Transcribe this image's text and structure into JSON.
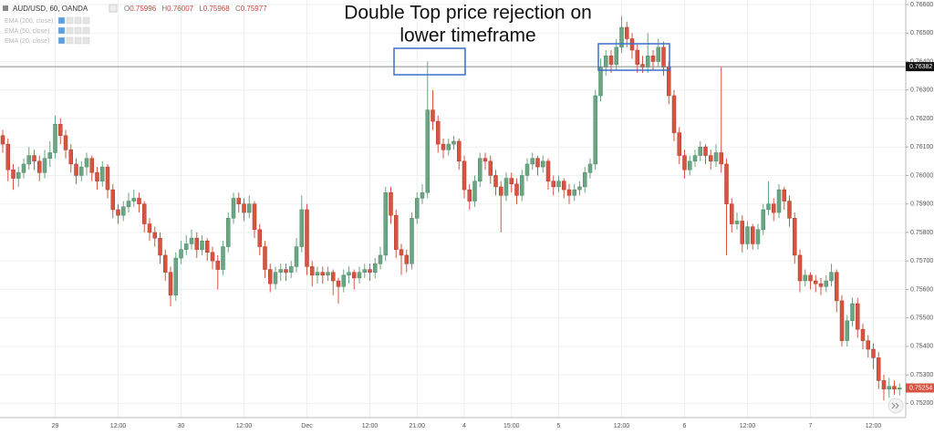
{
  "chart_data": {
    "type": "candlestick",
    "symbol": "AUD/USD, 60, OANDA",
    "ohlc_readout": [
      {
        "label": "O",
        "value": 0.75996
      },
      {
        "label": "H",
        "value": 0.76007
      },
      {
        "label": "L",
        "value": 0.75968
      },
      {
        "label": "C",
        "value": 0.75977
      }
    ],
    "indicators": [
      "EMA (200, close)",
      "EMA (50, close)",
      "EMA (20, close)"
    ],
    "annotation": [
      "Double Top price rejection on",
      "lower timeframe"
    ],
    "up_color": "#6ba583",
    "down_color": "#d75442",
    "ylim": [
      0.7515,
      0.76616
    ],
    "yticks": [
      {
        "value": 0.766,
        "label": "0.76600"
      },
      {
        "value": 0.765,
        "label": "0.76500"
      },
      {
        "value": 0.764,
        "label": "0.76400"
      },
      {
        "value": 0.763,
        "label": "0.76300"
      },
      {
        "value": 0.762,
        "label": "0.76200"
      },
      {
        "value": 0.761,
        "label": "0.76100"
      },
      {
        "value": 0.76,
        "label": "0.76000"
      },
      {
        "value": 0.759,
        "label": "0.75900"
      },
      {
        "value": 0.758,
        "label": "0.75800"
      },
      {
        "value": 0.757,
        "label": "0.75700"
      },
      {
        "value": 0.756,
        "label": "0.75600"
      },
      {
        "value": 0.755,
        "label": "0.75500"
      },
      {
        "value": 0.754,
        "label": "0.75400"
      },
      {
        "value": 0.753,
        "label": "0.75300"
      },
      {
        "value": 0.752,
        "label": "0.75200"
      }
    ],
    "grid": true,
    "hline": 0.76382,
    "last_price": 0.75254,
    "categories": [
      null,
      null,
      null,
      null,
      null,
      null,
      null,
      null,
      null,
      null,
      "29",
      null,
      null,
      null,
      null,
      null,
      null,
      null,
      null,
      null,
      null,
      null,
      "12:00",
      null,
      null,
      null,
      null,
      null,
      null,
      null,
      null,
      null,
      null,
      null,
      "30",
      null,
      null,
      null,
      null,
      null,
      null,
      null,
      null,
      null,
      null,
      null,
      "12:00",
      null,
      null,
      null,
      null,
      null,
      null,
      null,
      null,
      null,
      null,
      null,
      "Dec",
      null,
      null,
      null,
      null,
      null,
      null,
      null,
      null,
      null,
      null,
      null,
      "12:00",
      null,
      null,
      null,
      null,
      null,
      null,
      null,
      null,
      "21:00",
      null,
      null,
      null,
      null,
      null,
      null,
      null,
      null,
      "4",
      null,
      null,
      null,
      null,
      null,
      null,
      null,
      null,
      "15:00",
      null,
      null,
      null,
      null,
      null,
      null,
      null,
      null,
      "5",
      null,
      null,
      null,
      null,
      null,
      null,
      null,
      null,
      null,
      null,
      null,
      "12:00",
      null,
      null,
      null,
      null,
      null,
      null,
      null,
      null,
      null,
      null,
      null,
      "6",
      null,
      null,
      null,
      null,
      null,
      null,
      null,
      null,
      null,
      null,
      null,
      "12:00",
      null,
      null,
      null,
      null,
      null,
      null,
      null,
      null,
      null,
      null,
      null,
      "7",
      null,
      null,
      null,
      null,
      null,
      null,
      null,
      null,
      null,
      null,
      null,
      "12:00",
      null,
      null,
      null,
      null,
      null
    ],
    "candles": [
      [
        0.7614,
        0.7616,
        0.7608,
        0.7611
      ],
      [
        0.7611,
        0.7613,
        0.7598,
        0.7602
      ],
      [
        0.7602,
        0.7604,
        0.7595,
        0.7599
      ],
      [
        0.7599,
        0.7603,
        0.7596,
        0.7601
      ],
      [
        0.7601,
        0.7606,
        0.7599,
        0.7604
      ],
      [
        0.7604,
        0.761,
        0.7602,
        0.7607
      ],
      [
        0.7607,
        0.7609,
        0.7602,
        0.7605
      ],
      [
        0.7605,
        0.7607,
        0.7598,
        0.7601
      ],
      [
        0.7601,
        0.7609,
        0.7599,
        0.7606
      ],
      [
        0.7606,
        0.7612,
        0.7603,
        0.7608
      ],
      [
        0.7608,
        0.7621,
        0.7606,
        0.7618
      ],
      [
        0.7618,
        0.762,
        0.7611,
        0.7614
      ],
      [
        0.7614,
        0.7616,
        0.7606,
        0.7609
      ],
      [
        0.7609,
        0.7611,
        0.7601,
        0.7604
      ],
      [
        0.7604,
        0.7606,
        0.7597,
        0.76
      ],
      [
        0.76,
        0.7605,
        0.7598,
        0.7603
      ],
      [
        0.7603,
        0.7608,
        0.76,
        0.7606
      ],
      [
        0.7606,
        0.7607,
        0.7598,
        0.7601
      ],
      [
        0.7601,
        0.7603,
        0.7595,
        0.7598
      ],
      [
        0.7598,
        0.7605,
        0.7596,
        0.7603
      ],
      [
        0.7603,
        0.7604,
        0.7592,
        0.7595
      ],
      [
        0.7595,
        0.7597,
        0.7585,
        0.7588
      ],
      [
        0.7588,
        0.759,
        0.7583,
        0.7586
      ],
      [
        0.7586,
        0.7591,
        0.7584,
        0.7589
      ],
      [
        0.7589,
        0.7594,
        0.7587,
        0.7591
      ],
      [
        0.7591,
        0.7595,
        0.7589,
        0.7592
      ],
      [
        0.7592,
        0.7594,
        0.7587,
        0.759
      ],
      [
        0.759,
        0.7591,
        0.758,
        0.7583
      ],
      [
        0.7583,
        0.7585,
        0.7577,
        0.758
      ],
      [
        0.758,
        0.7582,
        0.7575,
        0.7578
      ],
      [
        0.7578,
        0.758,
        0.7569,
        0.7572
      ],
      [
        0.7572,
        0.7574,
        0.7563,
        0.7566
      ],
      [
        0.7566,
        0.7568,
        0.7554,
        0.7558
      ],
      [
        0.7558,
        0.7573,
        0.7556,
        0.7571
      ],
      [
        0.7571,
        0.7577,
        0.7569,
        0.7574
      ],
      [
        0.7574,
        0.7579,
        0.7572,
        0.7576
      ],
      [
        0.7576,
        0.7581,
        0.7574,
        0.7578
      ],
      [
        0.7578,
        0.758,
        0.7571,
        0.7574
      ],
      [
        0.7574,
        0.7579,
        0.7572,
        0.7577
      ],
      [
        0.7577,
        0.7578,
        0.757,
        0.7573
      ],
      [
        0.7573,
        0.7575,
        0.7567,
        0.757
      ],
      [
        0.757,
        0.7572,
        0.756,
        0.7567
      ],
      [
        0.7567,
        0.7577,
        0.7565,
        0.7575
      ],
      [
        0.7575,
        0.7587,
        0.7573,
        0.7585
      ],
      [
        0.7585,
        0.7594,
        0.7583,
        0.7592
      ],
      [
        0.7592,
        0.7594,
        0.7587,
        0.759
      ],
      [
        0.759,
        0.7592,
        0.7584,
        0.7587
      ],
      [
        0.7587,
        0.7593,
        0.7585,
        0.759
      ],
      [
        0.759,
        0.7591,
        0.7578,
        0.7581
      ],
      [
        0.7581,
        0.7583,
        0.7572,
        0.7575
      ],
      [
        0.7575,
        0.7577,
        0.7564,
        0.7567
      ],
      [
        0.7567,
        0.7569,
        0.7559,
        0.7562
      ],
      [
        0.7562,
        0.7568,
        0.756,
        0.7566
      ],
      [
        0.7566,
        0.7569,
        0.7563,
        0.7567
      ],
      [
        0.7567,
        0.7569,
        0.7563,
        0.7566
      ],
      [
        0.7566,
        0.757,
        0.7564,
        0.7568
      ],
      [
        0.7568,
        0.7578,
        0.7566,
        0.7575
      ],
      [
        0.7575,
        0.7593,
        0.7573,
        0.7588
      ],
      [
        0.7588,
        0.759,
        0.7565,
        0.7568
      ],
      [
        0.7568,
        0.757,
        0.7561,
        0.7565
      ],
      [
        0.7565,
        0.7568,
        0.7562,
        0.7566
      ],
      [
        0.7566,
        0.7568,
        0.7562,
        0.7565
      ],
      [
        0.7565,
        0.7568,
        0.7563,
        0.7566
      ],
      [
        0.7566,
        0.7567,
        0.7558,
        0.7563
      ],
      [
        0.7563,
        0.7564,
        0.7555,
        0.7561
      ],
      [
        0.7561,
        0.7567,
        0.7559,
        0.7565
      ],
      [
        0.7565,
        0.7568,
        0.7562,
        0.7566
      ],
      [
        0.7566,
        0.7567,
        0.756,
        0.7564
      ],
      [
        0.7564,
        0.7568,
        0.7562,
        0.7566
      ],
      [
        0.7566,
        0.7569,
        0.7564,
        0.7567
      ],
      [
        0.7567,
        0.7569,
        0.7563,
        0.7566
      ],
      [
        0.7566,
        0.7571,
        0.7564,
        0.7569
      ],
      [
        0.7569,
        0.7575,
        0.7567,
        0.7572
      ],
      [
        0.7572,
        0.7596,
        0.757,
        0.7594
      ],
      [
        0.7594,
        0.7596,
        0.7583,
        0.7586
      ],
      [
        0.7586,
        0.7588,
        0.7571,
        0.7574
      ],
      [
        0.7574,
        0.7576,
        0.7565,
        0.7572
      ],
      [
        0.7572,
        0.7574,
        0.7566,
        0.7569
      ],
      [
        0.7569,
        0.7587,
        0.7567,
        0.7585
      ],
      [
        0.7585,
        0.7594,
        0.7583,
        0.7592
      ],
      [
        0.7592,
        0.7597,
        0.759,
        0.7594
      ],
      [
        0.7594,
        0.764,
        0.7592,
        0.7623
      ],
      [
        0.7623,
        0.763,
        0.7616,
        0.7619
      ],
      [
        0.7619,
        0.7621,
        0.7608,
        0.7611
      ],
      [
        0.7611,
        0.7613,
        0.7606,
        0.7609
      ],
      [
        0.7609,
        0.7613,
        0.7607,
        0.7611
      ],
      [
        0.7611,
        0.7614,
        0.7609,
        0.7612
      ],
      [
        0.7612,
        0.7613,
        0.7602,
        0.7605
      ],
      [
        0.7605,
        0.7607,
        0.7592,
        0.7595
      ],
      [
        0.7595,
        0.7597,
        0.7588,
        0.7591
      ],
      [
        0.7591,
        0.76,
        0.7589,
        0.7598
      ],
      [
        0.7598,
        0.7608,
        0.7596,
        0.7606
      ],
      [
        0.7606,
        0.7608,
        0.7602,
        0.7605
      ],
      [
        0.7605,
        0.7607,
        0.7597,
        0.76
      ],
      [
        0.76,
        0.7602,
        0.7593,
        0.7596
      ],
      [
        0.7596,
        0.7598,
        0.758,
        0.7593
      ],
      [
        0.7593,
        0.7601,
        0.7591,
        0.7599
      ],
      [
        0.7599,
        0.7601,
        0.7594,
        0.7597
      ],
      [
        0.7597,
        0.7599,
        0.759,
        0.7593
      ],
      [
        0.7593,
        0.7602,
        0.7591,
        0.76
      ],
      [
        0.76,
        0.7606,
        0.7598,
        0.7604
      ],
      [
        0.7604,
        0.7608,
        0.7602,
        0.7606
      ],
      [
        0.7606,
        0.7607,
        0.76,
        0.7603
      ],
      [
        0.7603,
        0.7607,
        0.7601,
        0.7605
      ],
      [
        0.7605,
        0.7606,
        0.7595,
        0.7598
      ],
      [
        0.7598,
        0.76,
        0.7593,
        0.7596
      ],
      [
        0.7596,
        0.76,
        0.7594,
        0.7598
      ],
      [
        0.7598,
        0.7599,
        0.7592,
        0.7595
      ],
      [
        0.7595,
        0.7597,
        0.759,
        0.7593
      ],
      [
        0.7593,
        0.7597,
        0.7591,
        0.7595
      ],
      [
        0.7595,
        0.7598,
        0.7593,
        0.7596
      ],
      [
        0.7596,
        0.7603,
        0.7594,
        0.7601
      ],
      [
        0.7601,
        0.7606,
        0.7599,
        0.7604
      ],
      [
        0.7604,
        0.763,
        0.7602,
        0.7628
      ],
      [
        0.7628,
        0.7641,
        0.7626,
        0.7638
      ],
      [
        0.7638,
        0.7644,
        0.7635,
        0.7642
      ],
      [
        0.7642,
        0.7644,
        0.7636,
        0.7639
      ],
      [
        0.7639,
        0.7648,
        0.7637,
        0.7645
      ],
      [
        0.7645,
        0.7656,
        0.7643,
        0.7652
      ],
      [
        0.7652,
        0.7654,
        0.7645,
        0.7648
      ],
      [
        0.7648,
        0.765,
        0.7641,
        0.7644
      ],
      [
        0.7644,
        0.7646,
        0.7636,
        0.7639
      ],
      [
        0.7639,
        0.7642,
        0.7636,
        0.7638
      ],
      [
        0.7638,
        0.765,
        0.7636,
        0.7642
      ],
      [
        0.7642,
        0.7644,
        0.7637,
        0.764
      ],
      [
        0.764,
        0.7648,
        0.7638,
        0.7645
      ],
      [
        0.7645,
        0.7647,
        0.7635,
        0.7638
      ],
      [
        0.7638,
        0.764,
        0.7625,
        0.7628
      ],
      [
        0.7628,
        0.763,
        0.7612,
        0.7615
      ],
      [
        0.7615,
        0.7617,
        0.7604,
        0.7607
      ],
      [
        0.7607,
        0.7609,
        0.7599,
        0.7602
      ],
      [
        0.7602,
        0.7607,
        0.76,
        0.7605
      ],
      [
        0.7605,
        0.7609,
        0.7603,
        0.7607
      ],
      [
        0.7607,
        0.7612,
        0.7605,
        0.761
      ],
      [
        0.761,
        0.7611,
        0.7604,
        0.7607
      ],
      [
        0.7607,
        0.7609,
        0.7602,
        0.7605
      ],
      [
        0.7605,
        0.7611,
        0.7603,
        0.7608
      ],
      [
        0.7608,
        0.7638,
        0.7601,
        0.7604
      ],
      [
        0.7604,
        0.7606,
        0.7572,
        0.759
      ],
      [
        0.759,
        0.7592,
        0.758,
        0.7583
      ],
      [
        0.7583,
        0.7587,
        0.7581,
        0.7584
      ],
      [
        0.7584,
        0.7586,
        0.7573,
        0.7576
      ],
      [
        0.7576,
        0.7584,
        0.7574,
        0.7582
      ],
      [
        0.7582,
        0.7583,
        0.7574,
        0.7576
      ],
      [
        0.7576,
        0.7583,
        0.7574,
        0.7581
      ],
      [
        0.7581,
        0.759,
        0.7579,
        0.7588
      ],
      [
        0.7588,
        0.7598,
        0.7586,
        0.759
      ],
      [
        0.759,
        0.7592,
        0.7584,
        0.7587
      ],
      [
        0.7587,
        0.7597,
        0.7585,
        0.7595
      ],
      [
        0.7595,
        0.7596,
        0.7588,
        0.7591
      ],
      [
        0.7591,
        0.7593,
        0.7582,
        0.7585
      ],
      [
        0.7585,
        0.7587,
        0.7569,
        0.7572
      ],
      [
        0.7572,
        0.7574,
        0.7559,
        0.7563
      ],
      [
        0.7563,
        0.7567,
        0.7561,
        0.7565
      ],
      [
        0.7565,
        0.7566,
        0.756,
        0.7563
      ],
      [
        0.7563,
        0.7565,
        0.7559,
        0.7562
      ],
      [
        0.7562,
        0.7564,
        0.7558,
        0.7561
      ],
      [
        0.7561,
        0.7565,
        0.7559,
        0.7563
      ],
      [
        0.7563,
        0.7569,
        0.7561,
        0.7566
      ],
      [
        0.7566,
        0.7567,
        0.7552,
        0.7556
      ],
      [
        0.7556,
        0.7558,
        0.754,
        0.7542
      ],
      [
        0.7542,
        0.7551,
        0.754,
        0.7549
      ],
      [
        0.7549,
        0.7557,
        0.7547,
        0.7555
      ],
      [
        0.7555,
        0.7557,
        0.7543,
        0.7546
      ],
      [
        0.7546,
        0.7548,
        0.7539,
        0.7542
      ],
      [
        0.7542,
        0.7544,
        0.7536,
        0.7539
      ],
      [
        0.7539,
        0.7541,
        0.7532,
        0.7536
      ],
      [
        0.7536,
        0.7538,
        0.7525,
        0.7528
      ],
      [
        0.7528,
        0.753,
        0.7521,
        0.7525
      ],
      [
        0.7525,
        0.7529,
        0.7522,
        0.7526
      ],
      [
        0.7526,
        0.7528,
        0.7523,
        0.7525
      ],
      [
        0.7525,
        0.7527,
        0.75228,
        0.75254
      ]
    ]
  }
}
